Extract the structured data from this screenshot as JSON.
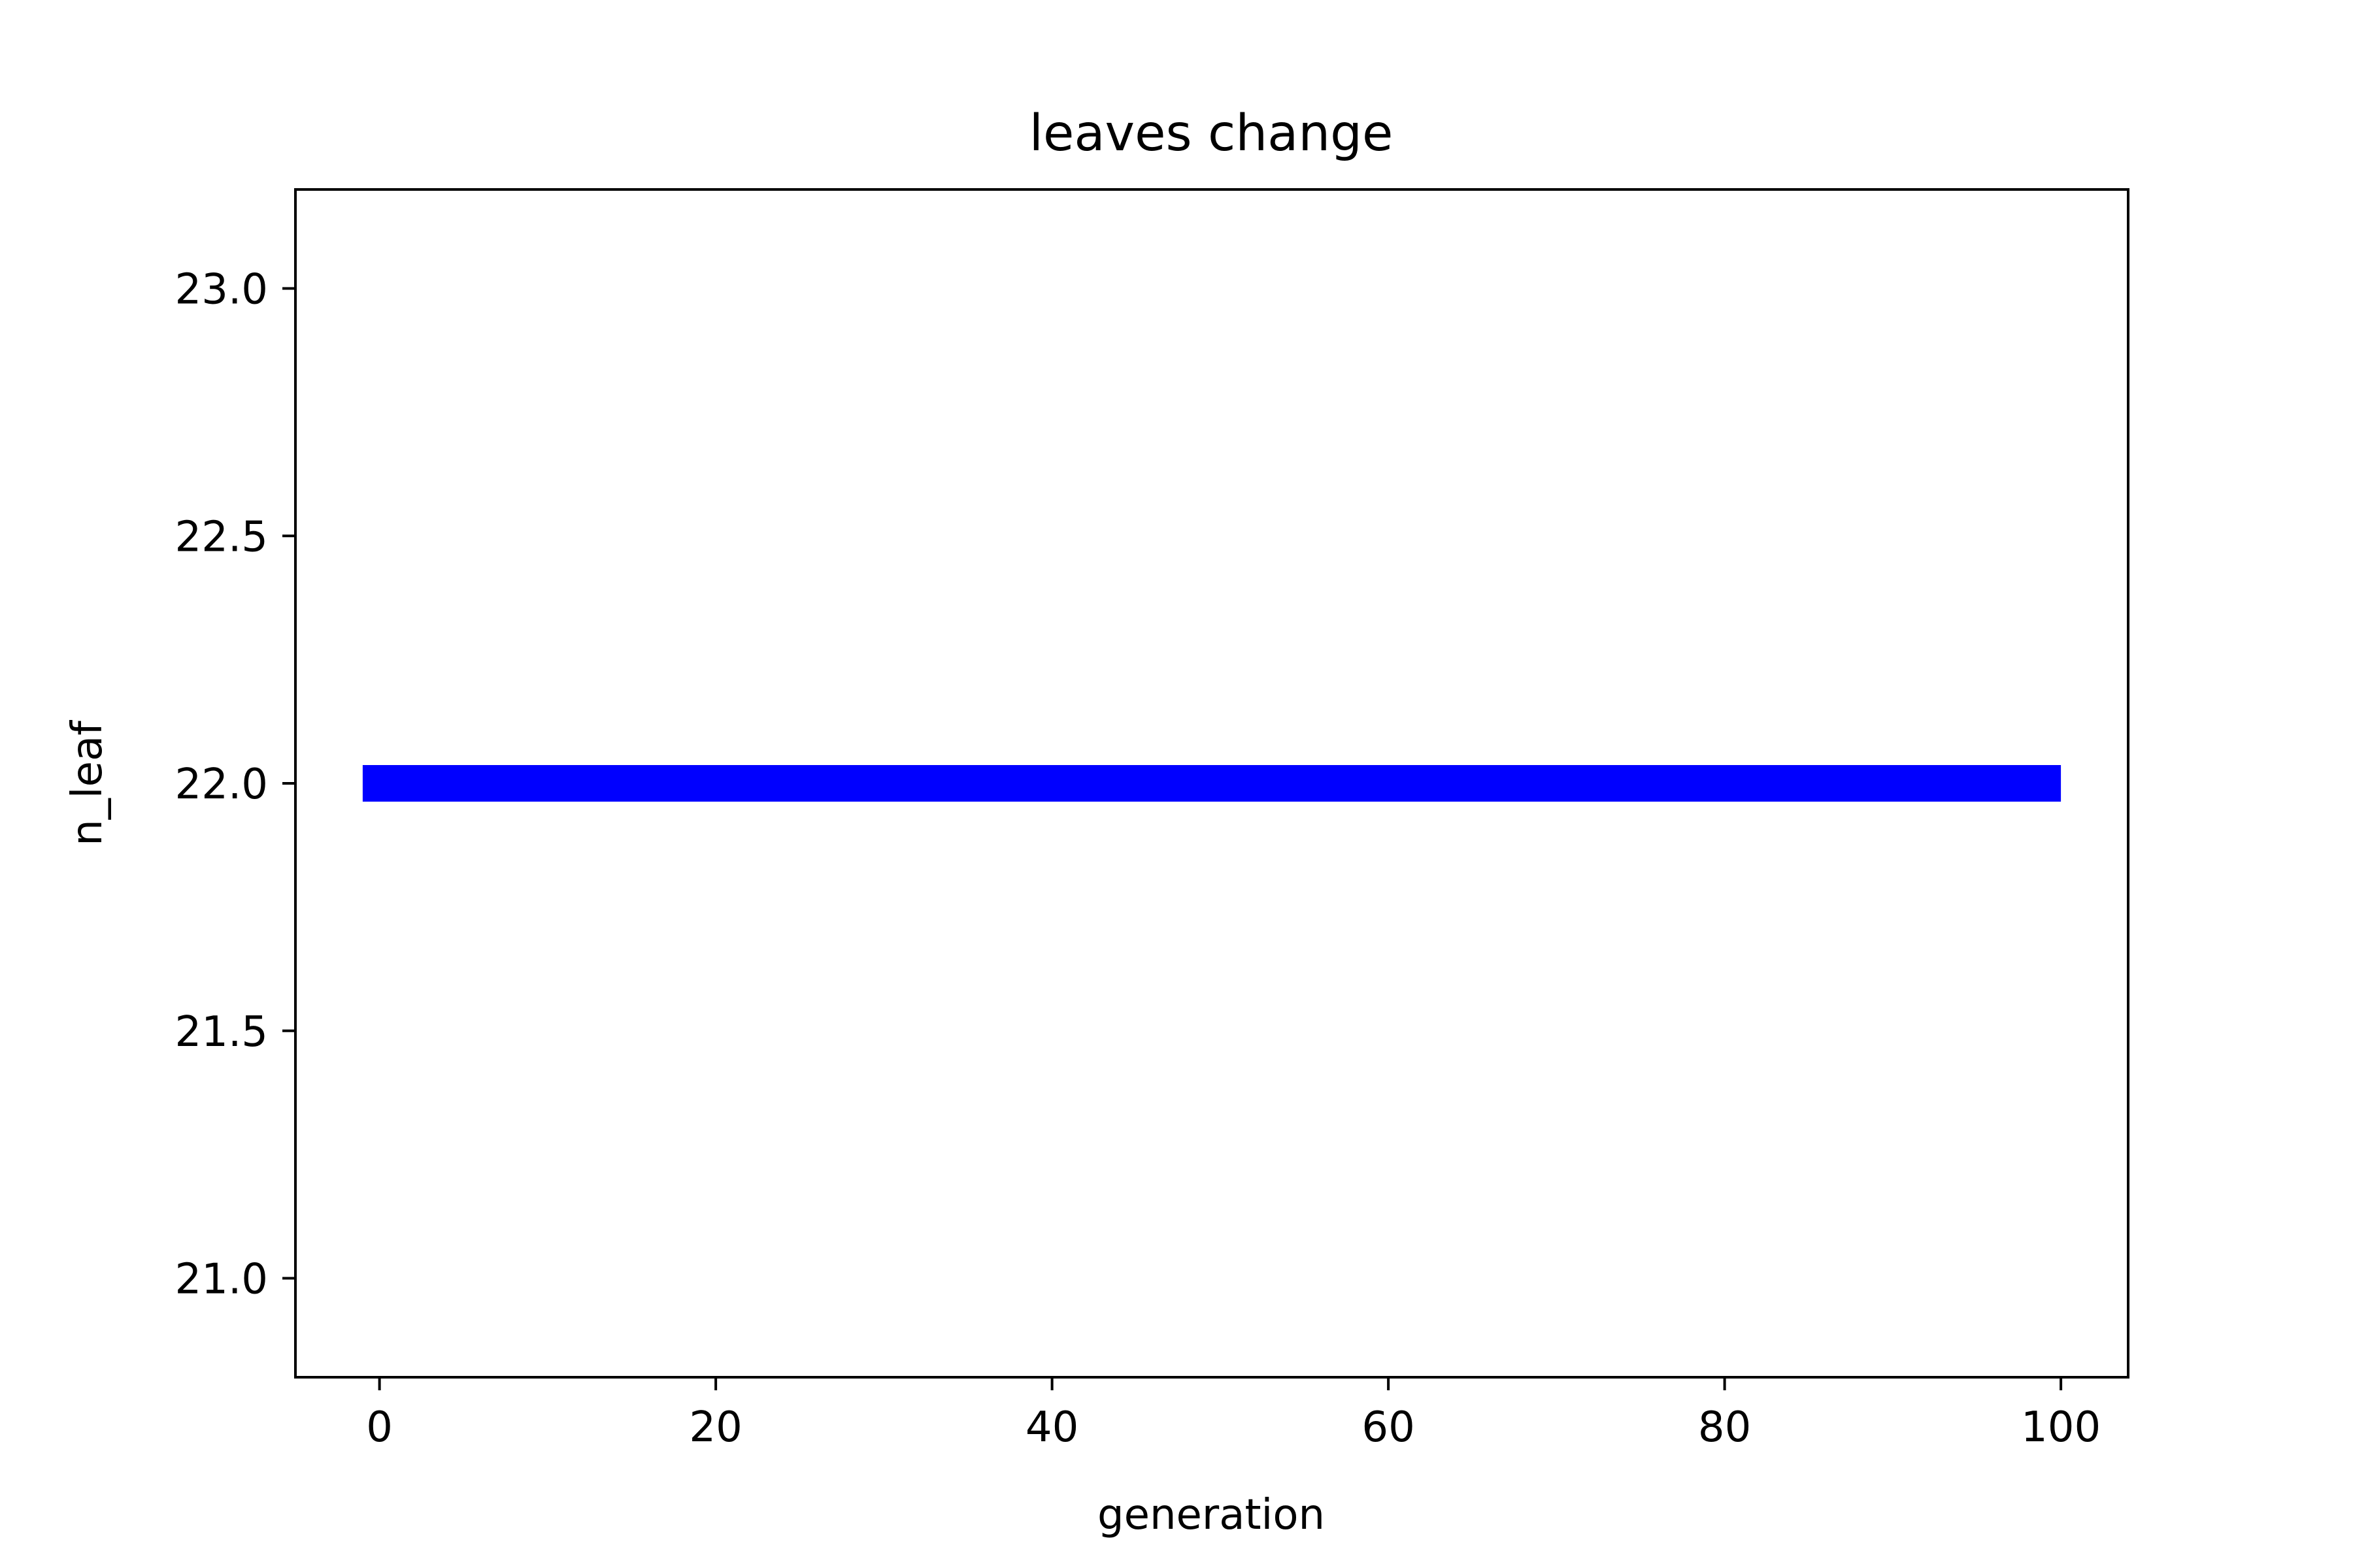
{
  "chart_data": {
    "type": "line",
    "title": "leaves change",
    "xlabel": "generation",
    "ylabel": "n_leaf",
    "xlim": [
      -5,
      104
    ],
    "ylim": [
      20.8,
      23.2
    ],
    "xticks": [
      0,
      20,
      40,
      60,
      80,
      100
    ],
    "yticks": [
      21.0,
      21.5,
      22.0,
      22.5,
      23.0
    ],
    "ytick_labels": [
      "21.0",
      "21.5",
      "22.0",
      "22.5",
      "23.0"
    ],
    "grid": false,
    "series": [
      {
        "color": "#0000ff",
        "x": [
          -1,
          100
        ],
        "y": [
          22,
          22
        ]
      }
    ]
  }
}
